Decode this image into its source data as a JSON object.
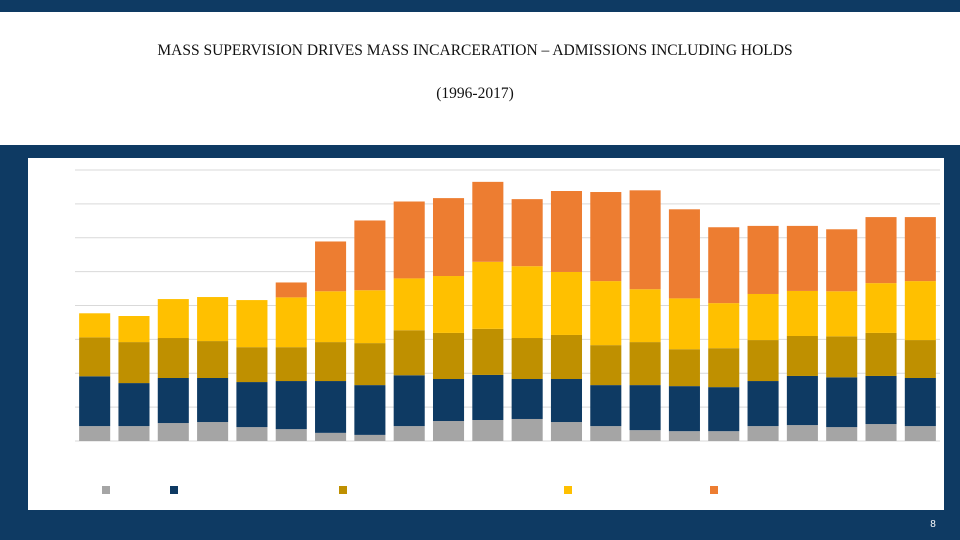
{
  "chart_data": {
    "type": "stacked_bar",
    "title": "MASS SUPERVISION DRIVES MASS INCARCERATION – ADMISSIONS INCLUDING HOLDS",
    "subtitle": "(1996-2017)",
    "categories": [
      null,
      null,
      null,
      null,
      null,
      null,
      null,
      null,
      null,
      null,
      null,
      null,
      null,
      null,
      null,
      null,
      null,
      null,
      null,
      null,
      null,
      null
    ],
    "series": [
      {
        "color": "#a5a5a5",
        "values": [
          0.44,
          0.44,
          0.53,
          0.56,
          0.41,
          0.35,
          0.24,
          0.18,
          0.44,
          0.59,
          0.62,
          0.65,
          0.56,
          0.44,
          0.32,
          0.29,
          0.29,
          0.44,
          0.47,
          0.41,
          0.5,
          0.44
        ]
      },
      {
        "color": "#0e3a63",
        "values": [
          1.47,
          1.27,
          1.33,
          1.3,
          1.33,
          1.42,
          1.53,
          1.47,
          1.5,
          1.24,
          1.33,
          1.18,
          1.27,
          1.21,
          1.33,
          1.33,
          1.3,
          1.33,
          1.45,
          1.47,
          1.42,
          1.42
        ]
      },
      {
        "color": "#bf9000",
        "values": [
          1.15,
          1.21,
          1.18,
          1.09,
          1.03,
          1.0,
          1.15,
          1.24,
          1.33,
          1.36,
          1.36,
          1.21,
          1.3,
          1.18,
          1.27,
          1.09,
          1.15,
          1.21,
          1.18,
          1.21,
          1.27,
          1.12
        ]
      },
      {
        "color": "#ffc000",
        "values": [
          0.71,
          0.77,
          1.15,
          1.3,
          1.39,
          1.47,
          1.5,
          1.56,
          1.53,
          1.68,
          1.98,
          2.12,
          1.86,
          1.89,
          1.56,
          1.5,
          1.33,
          1.36,
          1.33,
          1.33,
          1.47,
          1.74
        ]
      },
      {
        "color": "#ed7d31",
        "values": [
          0,
          0,
          0,
          0,
          0,
          0.44,
          1.47,
          2.06,
          2.27,
          2.3,
          2.36,
          1.98,
          2.39,
          2.63,
          2.92,
          2.63,
          2.24,
          2.01,
          1.92,
          1.83,
          1.95,
          1.89
        ]
      }
    ],
    "ylim": [
      0,
      8
    ],
    "yticks": [
      0,
      1,
      2,
      3,
      4,
      5,
      6,
      7,
      8
    ],
    "grid": true,
    "y_tick_labels": false
  },
  "page_number": 8
}
